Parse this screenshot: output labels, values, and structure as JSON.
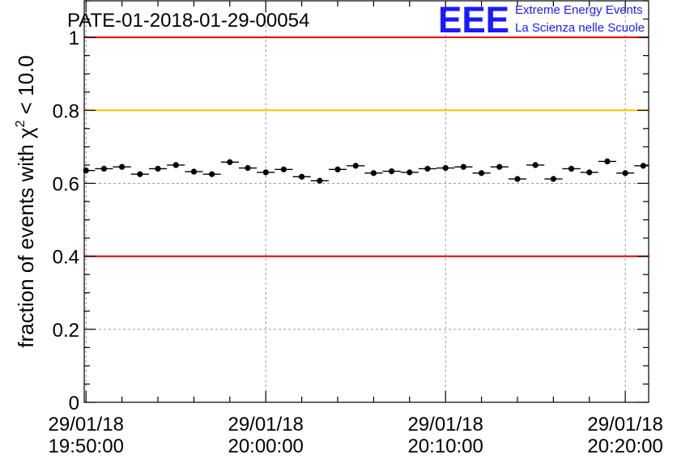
{
  "chart_data": {
    "type": "scatter",
    "title": "PATE-01-2018-01-29-00054",
    "ylabel_prefix": "fraction of events with ",
    "ylabel_symbol": "χ",
    "ylabel_sup": "2",
    "ylabel_suffix": " < 10.0",
    "ylim": [
      0,
      1.1
    ],
    "y_ticks": [
      "0",
      "0.2",
      "0.4",
      "0.6",
      "0.8",
      "1"
    ],
    "x_ticks": [
      {
        "date": "29/01/18",
        "time": "19:50:00",
        "minutes": 0
      },
      {
        "date": "29/01/18",
        "time": "20:00:00",
        "minutes": 10
      },
      {
        "date": "29/01/18",
        "time": "20:10:00",
        "minutes": 20
      },
      {
        "date": "29/01/18",
        "time": "20:20:00",
        "minutes": 30
      }
    ],
    "xlim_minutes": [
      -0.1,
      31.3
    ],
    "grid": true,
    "reference_lines": [
      {
        "value": 1.0,
        "color": "#e00000"
      },
      {
        "value": 0.8,
        "color": "#ffc000"
      },
      {
        "value": 0.4,
        "color": "#e00000"
      }
    ],
    "bin_width_minutes": 1,
    "series": [
      {
        "name": "fraction",
        "x_minutes": [
          0,
          1,
          2,
          3,
          4,
          5,
          6,
          7,
          8,
          9,
          10,
          11,
          12,
          13,
          14,
          15,
          16,
          17,
          18,
          19,
          20,
          21,
          22,
          23,
          24,
          25,
          26,
          27,
          28,
          29,
          30,
          31
        ],
        "values": [
          0.635,
          0.64,
          0.645,
          0.625,
          0.64,
          0.65,
          0.632,
          0.625,
          0.658,
          0.642,
          0.63,
          0.638,
          0.618,
          0.607,
          0.638,
          0.648,
          0.628,
          0.633,
          0.63,
          0.64,
          0.642,
          0.645,
          0.628,
          0.645,
          0.612,
          0.65,
          0.612,
          0.64,
          0.63,
          0.66,
          0.628,
          0.648
        ],
        "errors": [
          0.008,
          0.008,
          0.008,
          0.008,
          0.008,
          0.008,
          0.008,
          0.008,
          0.008,
          0.008,
          0.008,
          0.008,
          0.008,
          0.008,
          0.008,
          0.008,
          0.008,
          0.008,
          0.008,
          0.008,
          0.008,
          0.008,
          0.008,
          0.008,
          0.008,
          0.008,
          0.008,
          0.008,
          0.008,
          0.008,
          0.008,
          0.008
        ]
      }
    ]
  },
  "logo": {
    "letters": "EEE",
    "line1": "Extreme Energy Events",
    "line2": "La Scienza nelle Scuole",
    "color": "#1a1aff"
  }
}
